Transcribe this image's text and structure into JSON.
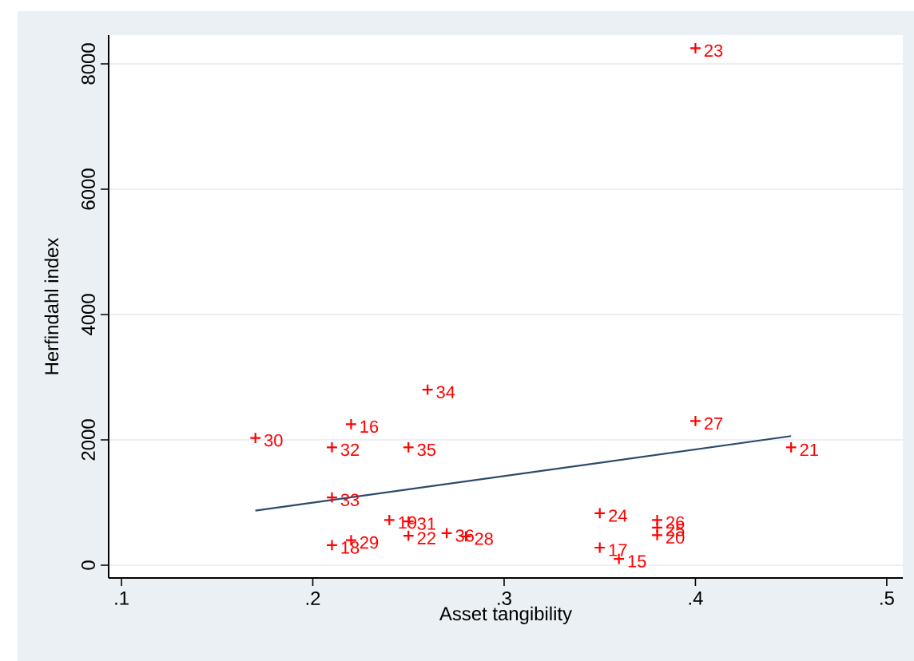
{
  "chart_data": {
    "type": "scatter",
    "xlabel": "Asset tangibility",
    "ylabel": "Herfindahl index",
    "xlim": [
      0.0933,
      0.5084
    ],
    "ylim": [
      -204,
      8459
    ],
    "xticks": [
      {
        "value": 0.1,
        "label": ".1"
      },
      {
        "value": 0.2,
        "label": ".2"
      },
      {
        "value": 0.3,
        "label": ".3"
      },
      {
        "value": 0.4,
        "label": ".4"
      },
      {
        "value": 0.5,
        "label": ".5"
      }
    ],
    "yticks": [
      0,
      2000,
      4000,
      6000,
      8000
    ],
    "grid": "y",
    "series": [
      {
        "color": "#ff0000",
        "marker": "cross",
        "x": [
          0.4,
          0.26,
          0.4,
          0.22,
          0.17,
          0.21,
          0.25,
          0.45,
          0.21,
          0.35,
          0.24,
          0.25,
          0.38,
          0.38,
          0.38,
          0.25,
          0.27,
          0.28,
          0.22,
          0.21,
          0.35,
          0.36
        ],
        "values": [
          8250,
          2800,
          2300,
          2250,
          2030,
          1880,
          1880,
          1880,
          1080,
          830,
          720,
          700,
          720,
          600,
          480,
          470,
          510,
          460,
          400,
          320,
          280,
          100
        ]
      },
      {
        "type": "line",
        "color": "#2b4a6b",
        "marker": "none",
        "x": [
          0.17,
          0.45
        ],
        "values": [
          870,
          2060
        ]
      }
    ],
    "annotations": [
      {
        "text": "23",
        "x": 0.4,
        "y": 8250
      },
      {
        "text": "34",
        "x": 0.26,
        "y": 2800
      },
      {
        "text": "27",
        "x": 0.4,
        "y": 2300
      },
      {
        "text": "16",
        "x": 0.22,
        "y": 2250
      },
      {
        "text": "30",
        "x": 0.17,
        "y": 2030
      },
      {
        "text": "32",
        "x": 0.21,
        "y": 1880
      },
      {
        "text": "35",
        "x": 0.25,
        "y": 1880
      },
      {
        "text": "21",
        "x": 0.45,
        "y": 1880
      },
      {
        "text": "33",
        "x": 0.21,
        "y": 1080
      },
      {
        "text": "24",
        "x": 0.35,
        "y": 830
      },
      {
        "text": "19",
        "x": 0.24,
        "y": 720
      },
      {
        "text": "31",
        "x": 0.25,
        "y": 700
      },
      {
        "text": "26",
        "x": 0.38,
        "y": 720
      },
      {
        "text": "25",
        "x": 0.38,
        "y": 600
      },
      {
        "text": "20",
        "x": 0.38,
        "y": 480
      },
      {
        "text": "22",
        "x": 0.25,
        "y": 470
      },
      {
        "text": "36",
        "x": 0.27,
        "y": 510
      },
      {
        "text": "28",
        "x": 0.28,
        "y": 460
      },
      {
        "text": "29",
        "x": 0.22,
        "y": 400
      },
      {
        "text": "18",
        "x": 0.21,
        "y": 320
      },
      {
        "text": "17",
        "x": 0.35,
        "y": 280
      },
      {
        "text": "15",
        "x": 0.36,
        "y": 100
      }
    ]
  }
}
